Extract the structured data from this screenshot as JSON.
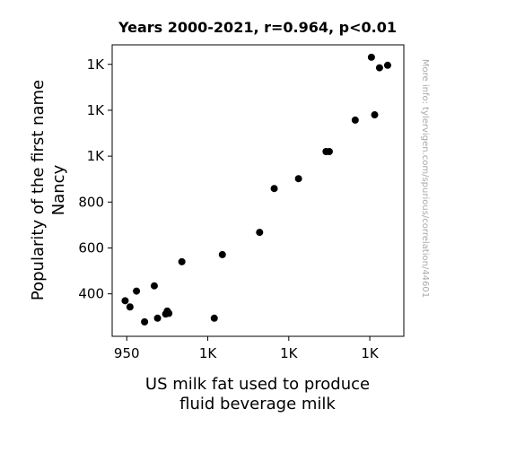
{
  "chart_data": {
    "type": "scatter",
    "title": "Years 2000-2021, r=0.964, p<0.01",
    "xlabel_lines": [
      "US milk fat used to produce",
      "fluid beverage milk"
    ],
    "ylabel_lines": [
      "Popularity of the first name",
      "Nancy"
    ],
    "watermark": "More info: tylervigen.com/spurious/correlation/44601",
    "x_ticks": [
      {
        "value": 950,
        "label": "950"
      },
      {
        "value": 1000,
        "label": "1K"
      },
      {
        "value": 1050,
        "label": "1K"
      },
      {
        "value": 1100,
        "label": "1K"
      }
    ],
    "y_ticks": [
      {
        "value": 400,
        "label": "400"
      },
      {
        "value": 600,
        "label": "600"
      },
      {
        "value": 800,
        "label": "800"
      },
      {
        "value": 1000,
        "label": "1K"
      },
      {
        "value": 1200,
        "label": "1K"
      },
      {
        "value": 1400,
        "label": "1K"
      }
    ],
    "xlim": [
      941,
      1121
    ],
    "ylim": [
      215,
      1485
    ],
    "grid": false,
    "marker_color": "#000000",
    "points": [
      {
        "x": 949,
        "y": 370
      },
      {
        "x": 952,
        "y": 343
      },
      {
        "x": 956,
        "y": 412
      },
      {
        "x": 961,
        "y": 278
      },
      {
        "x": 967,
        "y": 435
      },
      {
        "x": 969,
        "y": 294
      },
      {
        "x": 974,
        "y": 312
      },
      {
        "x": 975,
        "y": 325
      },
      {
        "x": 976,
        "y": 315
      },
      {
        "x": 984,
        "y": 540
      },
      {
        "x": 1004,
        "y": 294
      },
      {
        "x": 1009,
        "y": 571
      },
      {
        "x": 1032,
        "y": 668
      },
      {
        "x": 1041,
        "y": 859
      },
      {
        "x": 1056,
        "y": 902
      },
      {
        "x": 1073,
        "y": 1020
      },
      {
        "x": 1075,
        "y": 1020
      },
      {
        "x": 1091,
        "y": 1157
      },
      {
        "x": 1101,
        "y": 1431
      },
      {
        "x": 1103,
        "y": 1180
      },
      {
        "x": 1106,
        "y": 1385
      },
      {
        "x": 1111,
        "y": 1396
      }
    ]
  }
}
